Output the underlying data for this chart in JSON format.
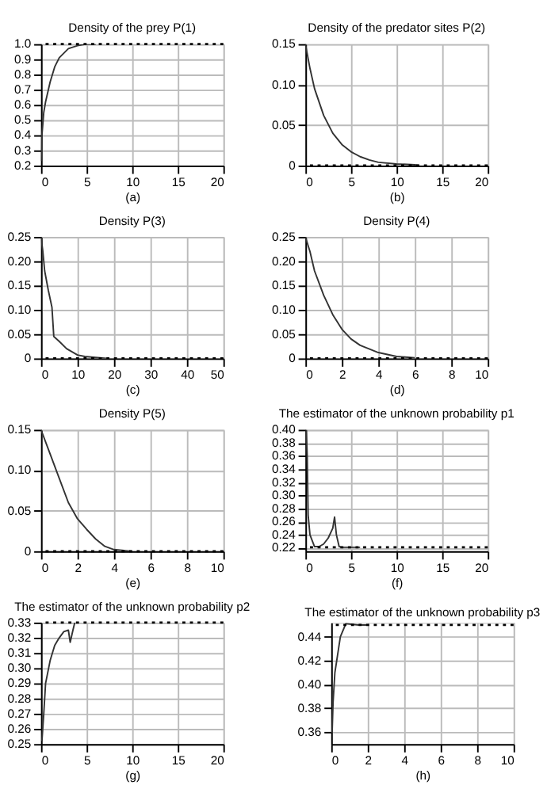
{
  "chart_data": [
    {
      "type": "line",
      "title": "Density of the prey P(1)",
      "xlabel": "(a)",
      "grid": true,
      "line_style": "solid",
      "xlim": [
        0,
        20
      ],
      "xticks": [
        0,
        5,
        10,
        15,
        20
      ],
      "ylim": [
        0.2,
        1.0
      ],
      "yticks": [
        0.2,
        0.3,
        0.4,
        0.5,
        0.6,
        0.7,
        0.8,
        0.9,
        {
          "value": 1.0,
          "label": "1.0"
        }
      ],
      "series": [
        {
          "color": "#333333",
          "x": [
            0,
            0.1,
            0.3,
            0.5,
            1,
            1.5,
            2,
            3,
            4,
            5,
            6
          ],
          "values": [
            0.23,
            0.4,
            0.55,
            0.62,
            0.75,
            0.85,
            0.91,
            0.97,
            0.99,
            1.0,
            1.0
          ]
        }
      ],
      "ref_lines": [
        {
          "axis": "y",
          "value": 1.0,
          "color": "#000000",
          "line_style": "dotted"
        }
      ]
    },
    {
      "type": "line",
      "title": "Density of the predator sites P(2)",
      "xlabel": "(b)",
      "grid": true,
      "line_style": "solid",
      "xlim": [
        0,
        20
      ],
      "xticks": [
        0,
        5,
        10,
        15,
        20
      ],
      "ylim": [
        0,
        0.15
      ],
      "yticks": [
        0,
        0.05,
        {
          "value": 0.1,
          "label": "0.10"
        },
        0.15
      ],
      "series": [
        {
          "color": "#333333",
          "x": [
            0,
            0.5,
            1,
            2,
            3,
            4,
            5,
            6,
            7,
            8,
            10,
            12,
            12.5
          ],
          "values": [
            0.15,
            0.12,
            0.095,
            0.062,
            0.04,
            0.026,
            0.017,
            0.011,
            0.007,
            0.004,
            0.002,
            0.001,
            0
          ]
        }
      ],
      "ref_lines": [
        {
          "axis": "y",
          "value": 0,
          "color": "#000000",
          "line_style": "dotted"
        }
      ]
    },
    {
      "type": "line",
      "title": "Density P(3)",
      "xlabel": "(c)",
      "grid": true,
      "line_style": "solid",
      "xlim": [
        0,
        50
      ],
      "xticks": [
        0,
        10,
        20,
        30,
        40,
        50
      ],
      "ylim": [
        0,
        0.25
      ],
      "yticks": [
        0,
        0.05,
        {
          "value": 0.1,
          "label": "0.10"
        },
        0.15,
        {
          "value": 0.2,
          "label": "0.20"
        },
        0.25
      ],
      "series": [
        {
          "color": "#333333",
          "x": [
            0,
            0.5,
            1,
            2,
            3,
            3.5,
            5,
            7,
            10,
            12,
            15,
            18
          ],
          "values": [
            0.25,
            0.22,
            0.18,
            0.14,
            0.105,
            0.045,
            0.035,
            0.02,
            0.007,
            0.004,
            0.002,
            0
          ]
        }
      ],
      "ref_lines": [
        {
          "axis": "y",
          "value": 0,
          "color": "#000000",
          "line_style": "dotted"
        }
      ]
    },
    {
      "type": "line",
      "title": "Density P(4)",
      "xlabel": "(d)",
      "grid": true,
      "line_style": "solid",
      "xlim": [
        0,
        10
      ],
      "xticks": [
        0,
        2,
        4,
        6,
        8,
        10
      ],
      "ylim": [
        0,
        0.25
      ],
      "yticks": [
        0,
        0.05,
        {
          "value": 0.1,
          "label": "0.10"
        },
        0.15,
        {
          "value": 0.2,
          "label": "0.20"
        },
        0.25
      ],
      "series": [
        {
          "color": "#333333",
          "x": [
            0,
            0.25,
            0.5,
            1,
            1.5,
            2,
            2.5,
            3,
            4,
            5,
            6
          ],
          "values": [
            0.25,
            0.22,
            0.18,
            0.13,
            0.09,
            0.06,
            0.04,
            0.027,
            0.012,
            0.004,
            0.001
          ]
        }
      ],
      "ref_lines": [
        {
          "axis": "y",
          "value": 0,
          "color": "#000000",
          "line_style": "dotted"
        }
      ]
    },
    {
      "type": "line",
      "title": "Density P(5)",
      "xlabel": "(e)",
      "grid": true,
      "line_style": "solid",
      "xlim": [
        0,
        10
      ],
      "xticks": [
        0,
        2,
        4,
        6,
        8,
        10
      ],
      "ylim": [
        0,
        0.15
      ],
      "yticks": [
        0,
        0.05,
        {
          "value": 0.1,
          "label": "0.10"
        },
        0.15
      ],
      "series": [
        {
          "color": "#333333",
          "x": [
            0,
            0.5,
            1,
            1.5,
            2,
            2.5,
            3,
            3.5,
            4,
            5
          ],
          "values": [
            0.15,
            0.12,
            0.09,
            0.06,
            0.04,
            0.027,
            0.015,
            0.006,
            0.002,
            0
          ]
        }
      ],
      "ref_lines": [
        {
          "axis": "y",
          "value": 0,
          "color": "#000000",
          "line_style": "dotted"
        }
      ]
    },
    {
      "type": "line",
      "title": "The estimator of the unknown probability p1",
      "xlabel": "(f)",
      "grid": true,
      "line_style": "solid",
      "xlim": [
        0,
        20
      ],
      "xticks": [
        0,
        5,
        10,
        15,
        20
      ],
      "ylim": [
        0.215,
        0.4
      ],
      "yticks": [
        0.22,
        0.24,
        0.26,
        0.28,
        {
          "value": 0.3,
          "label": "0.30"
        },
        0.32,
        0.34,
        0.36,
        0.38,
        {
          "value": 0.4,
          "label": "0.40"
        }
      ],
      "series": [
        {
          "color": "#333333",
          "x": [
            0.1,
            0.2,
            0.3,
            0.5,
            1,
            1.5,
            2,
            2.5,
            3,
            3.2,
            3.4,
            3.7,
            4,
            6
          ],
          "values": [
            0.4,
            0.36,
            0.27,
            0.24,
            0.222,
            0.222,
            0.226,
            0.235,
            0.25,
            0.267,
            0.24,
            0.222,
            0.221,
            0.221
          ]
        }
      ],
      "ref_lines": [
        {
          "axis": "y",
          "value": 0.221,
          "color": "#000000",
          "line_style": "dotted"
        }
      ]
    },
    {
      "type": "line",
      "title": "The estimator of the unknown probability p2",
      "xlabel": "(g)",
      "grid": true,
      "line_style": "solid",
      "xlim": [
        0,
        20
      ],
      "xticks": [
        0,
        5,
        10,
        15,
        20
      ],
      "ylim": [
        0.25,
        0.33
      ],
      "yticks": [
        0.25,
        0.26,
        0.27,
        0.28,
        0.29,
        {
          "value": 0.3,
          "label": "0.30"
        },
        0.31,
        0.32,
        0.33
      ],
      "series": [
        {
          "color": "#333333",
          "x": [
            0.1,
            0.3,
            0.5,
            1,
            1.5,
            2,
            2.5,
            3,
            3.2,
            3.5,
            3.7
          ],
          "values": [
            0.252,
            0.27,
            0.29,
            0.305,
            0.315,
            0.32,
            0.324,
            0.325,
            0.317,
            0.325,
            0.33
          ]
        }
      ],
      "ref_lines": [
        {
          "axis": "y",
          "value": 0.33,
          "color": "#000000",
          "line_style": "dotted"
        }
      ]
    },
    {
      "type": "line",
      "title": "The estimator of the unknown probability p3",
      "xlabel": "(h)",
      "grid": true,
      "line_style": "solid",
      "xlim": [
        0,
        10
      ],
      "xticks": [
        0,
        2,
        4,
        6,
        8,
        10
      ],
      "ylim": [
        0.35,
        0.452
      ],
      "yticks": [
        0.36,
        0.38,
        {
          "value": 0.4,
          "label": "0.40"
        },
        0.42,
        0.44
      ],
      "series": [
        {
          "color": "#333333",
          "x": [
            0,
            0.05,
            0.1,
            0.2,
            0.3,
            0.5,
            0.8,
            1.5,
            2
          ],
          "values": [
            0.36,
            0.36,
            0.385,
            0.41,
            0.42,
            0.44,
            0.451,
            0.45,
            0.45
          ]
        }
      ],
      "ref_lines": [
        {
          "axis": "y",
          "value": 0.45,
          "color": "#000000",
          "line_style": "dotted"
        }
      ]
    }
  ]
}
